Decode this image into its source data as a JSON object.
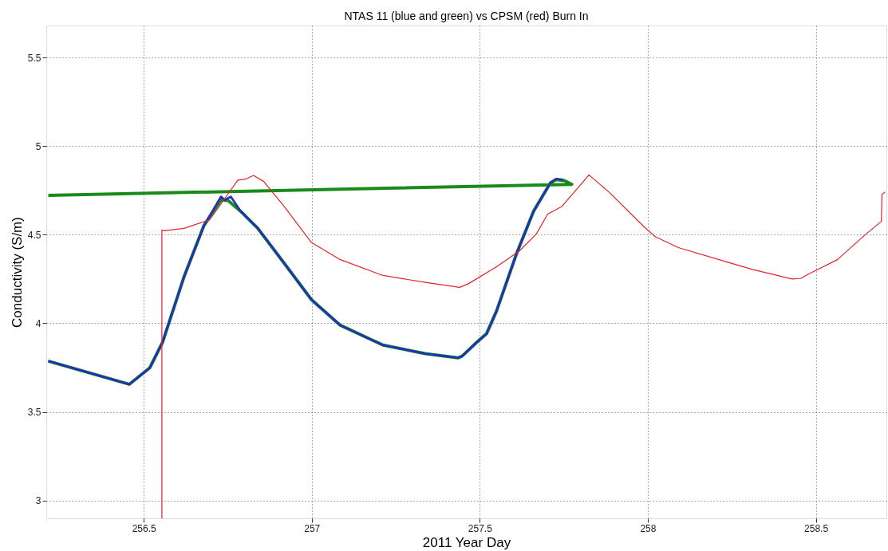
{
  "chart_data": {
    "type": "line",
    "title": "NTAS 11 (blue and green) vs CPSM (red) Burn In",
    "xlabel": "2011 Year Day",
    "ylabel": "Conductivity (S/m)",
    "xlim": [
      256.21,
      258.71
    ],
    "ylim": [
      2.9,
      5.68
    ],
    "xticks": [
      256.5,
      257,
      257.5,
      258,
      258.5
    ],
    "yticks": [
      3,
      3.5,
      4,
      4.5,
      5,
      5.5
    ],
    "grid": true,
    "legend": false,
    "line_style": "solid",
    "marker": "none",
    "series": [
      {
        "color": "#e8202a",
        "x": [
          256.554,
          256.554,
          256.561,
          256.62,
          256.696,
          256.738,
          256.78,
          256.805,
          256.827,
          256.857,
          256.916,
          256.999,
          257.085,
          257.212,
          257.338,
          257.44,
          257.465,
          257.55,
          257.617,
          257.668,
          257.702,
          257.744,
          257.825,
          257.887,
          257.989,
          258.023,
          258.091,
          258.226,
          258.311,
          258.429,
          258.455,
          258.479,
          258.564,
          258.649,
          258.695,
          258.697,
          258.706
        ],
        "values": [
          2.9,
          4.527,
          4.522,
          4.536,
          4.584,
          4.696,
          4.808,
          4.815,
          4.834,
          4.8,
          4.664,
          4.456,
          4.359,
          4.27,
          4.231,
          4.203,
          4.222,
          4.319,
          4.407,
          4.503,
          4.616,
          4.659,
          4.837,
          4.736,
          4.544,
          4.488,
          4.427,
          4.351,
          4.304,
          4.25,
          4.253,
          4.279,
          4.359,
          4.503,
          4.575,
          4.727,
          4.741
        ]
      },
      {
        "color": "#1f2fbf",
        "x": [
          256.216,
          256.457,
          256.518,
          256.556,
          256.62,
          256.679,
          256.73,
          256.741,
          256.759,
          256.789,
          256.839,
          256.916,
          256.999,
          257.085,
          257.212,
          257.338,
          257.435,
          257.448,
          257.491,
          257.52,
          257.55,
          257.609,
          257.66,
          257.71,
          257.727,
          257.748
        ],
        "values": [
          3.787,
          3.656,
          3.749,
          3.893,
          4.263,
          4.551,
          4.715,
          4.696,
          4.715,
          4.631,
          4.537,
          4.344,
          4.134,
          3.989,
          3.877,
          3.829,
          3.805,
          3.816,
          3.893,
          3.941,
          4.07,
          4.391,
          4.632,
          4.792,
          4.815,
          4.81
        ]
      },
      {
        "color": "#1a8a1a",
        "x": [
          256.216,
          256.457,
          256.518,
          256.556,
          256.62,
          256.679,
          256.73,
          256.751,
          256.789,
          256.839,
          256.916,
          256.999,
          257.085,
          257.212,
          257.338,
          257.435,
          257.448,
          257.491,
          257.52,
          257.55,
          257.609,
          257.66,
          257.71,
          257.727,
          257.752,
          257.774,
          256.216
        ],
        "values": [
          3.787,
          3.656,
          3.749,
          3.893,
          4.263,
          4.551,
          4.696,
          4.693,
          4.631,
          4.537,
          4.344,
          4.134,
          3.989,
          3.877,
          3.829,
          3.805,
          3.816,
          3.893,
          3.941,
          4.07,
          4.391,
          4.632,
          4.792,
          4.811,
          4.805,
          4.784,
          4.722
        ]
      }
    ]
  }
}
